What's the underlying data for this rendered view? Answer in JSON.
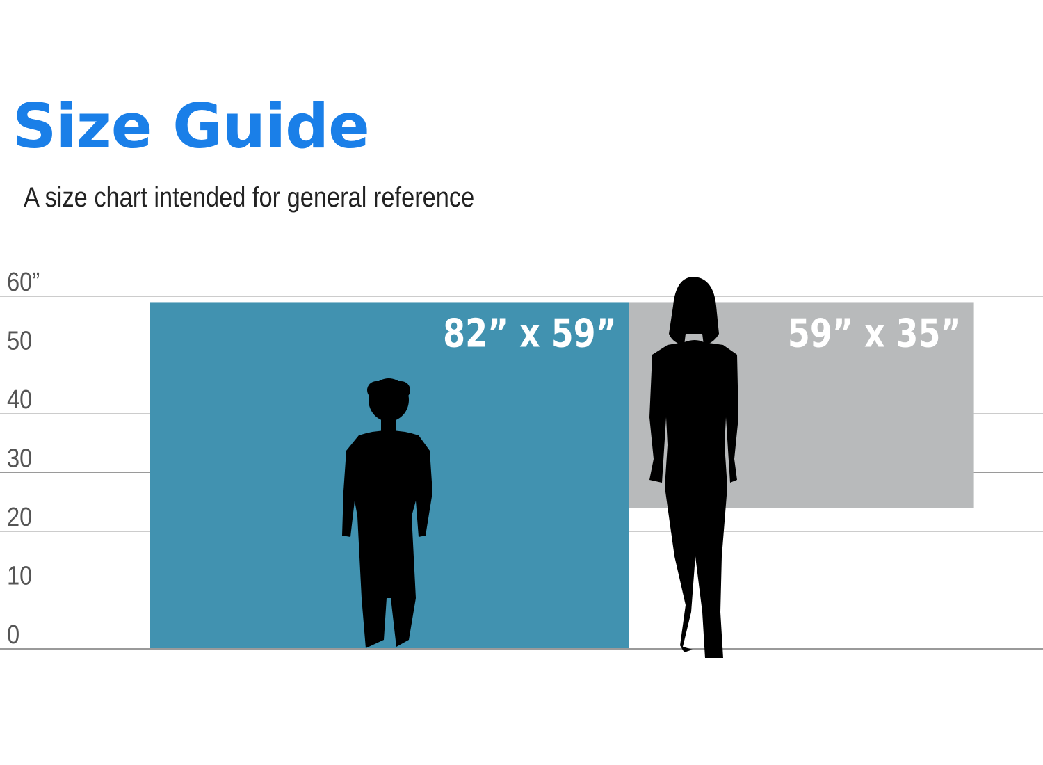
{
  "header": {
    "title": "Size Guide",
    "subtitle": "A size chart intended for general reference"
  },
  "colors": {
    "title": "#1a7fe8",
    "large_rect": "#4192b0",
    "small_rect": "#b8babb",
    "grid": "#9a9a9a",
    "axis_text": "#555555",
    "silhouette": "#000000",
    "label_text": "#ffffff"
  },
  "chart_data": {
    "type": "size-comparison",
    "y_unit": "inches",
    "ylim": [
      0,
      60
    ],
    "y_ticks": [
      {
        "value": 0,
        "label": "0"
      },
      {
        "value": 10,
        "label": "10"
      },
      {
        "value": 20,
        "label": "20"
      },
      {
        "value": 30,
        "label": "30"
      },
      {
        "value": 40,
        "label": "40"
      },
      {
        "value": 50,
        "label": "50"
      },
      {
        "value": 60,
        "label": "60”"
      }
    ],
    "items": [
      {
        "label": "82” x 59”",
        "width_in": 82,
        "height_in": 59,
        "bottom_in": 0,
        "color": "#4192b0"
      },
      {
        "label": "59” x 35”",
        "width_in": 59,
        "height_in": 35,
        "bottom_in": 24,
        "color": "#b8babb"
      }
    ],
    "silhouettes": [
      {
        "kind": "child-icon",
        "height_in": 46
      },
      {
        "kind": "woman-icon",
        "height_in": 64
      }
    ]
  }
}
